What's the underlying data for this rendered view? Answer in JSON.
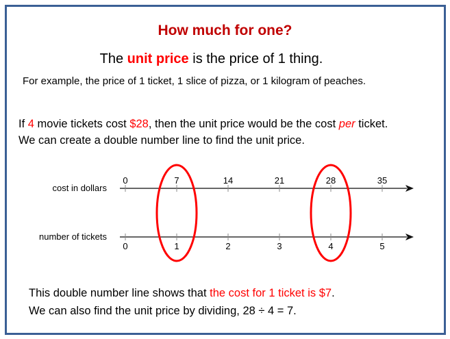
{
  "title": "How much for one?",
  "definition": {
    "pre": "The ",
    "highlight": "unit price",
    "post": " is the price of 1 thing."
  },
  "example": "For example, the price of 1 ticket, 1 slice of pizza, or 1 kilogram of peaches.",
  "problem": {
    "line1": [
      {
        "text": "If ",
        "red": false
      },
      {
        "text": "4",
        "red": true
      },
      {
        "text": " movie tickets cost ",
        "red": false
      },
      {
        "text": "$28",
        "red": true
      },
      {
        "text": ", then the unit price would be the cost ",
        "red": false
      },
      {
        "text": "per",
        "red": true,
        "italic": true
      },
      {
        "text": " ticket.",
        "red": false
      }
    ],
    "line2": "We can create a double number line to find the unit price."
  },
  "number_line": {
    "top_label": "cost in dollars",
    "top_ticks": [
      "0",
      "7",
      "14",
      "21",
      "28",
      "35"
    ],
    "bottom_label": "number of tickets",
    "bottom_ticks": [
      "0",
      "1",
      "2",
      "3",
      "4",
      "5"
    ],
    "circled_indices": [
      1,
      4
    ],
    "circle_color": "#ff0000"
  },
  "conclusion": {
    "line1_pre": "This double number line shows that ",
    "line1_red": "the cost for 1 ticket is $7",
    "line1_post": ".",
    "line2": "We can also find the unit price by dividing, 28 ÷ 4 = 7."
  },
  "colors": {
    "title": "#c00000",
    "highlight": "#ff0000",
    "frame": "#3a5f95"
  }
}
